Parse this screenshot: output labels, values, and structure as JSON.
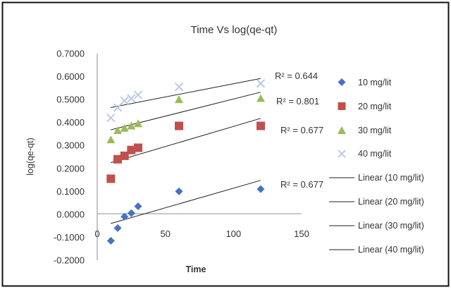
{
  "chart_data": {
    "type": "scatter",
    "title": "Time Vs log(qe-qt)",
    "xlabel": "Time",
    "ylabel": "log(qe-qt)",
    "xlim": [
      0,
      150
    ],
    "ylim": [
      -0.2,
      0.7
    ],
    "x_ticks": [
      "0",
      "50",
      "100",
      "150"
    ],
    "y_ticks": [
      "-0.2000",
      "-0.1000",
      "0.0000",
      "0.1000",
      "0.2000",
      "0.3000",
      "0.4000",
      "0.5000",
      "0.6000",
      "0.7000"
    ],
    "grid": false,
    "legend_position": "right",
    "series": [
      {
        "name": "10 mg/lit",
        "marker": "diamond",
        "color": "#4472C4",
        "points": [
          [
            10,
            -0.115
          ],
          [
            15,
            -0.06
          ],
          [
            20,
            -0.01
          ],
          [
            25,
            0.005
          ],
          [
            30,
            0.035
          ],
          [
            60,
            0.1
          ],
          [
            120,
            0.11
          ]
        ]
      },
      {
        "name": "20 mg/lit",
        "marker": "square",
        "color": "#C0504D",
        "points": [
          [
            10,
            0.155
          ],
          [
            15,
            0.24
          ],
          [
            20,
            0.255
          ],
          [
            25,
            0.28
          ],
          [
            30,
            0.29
          ],
          [
            60,
            0.385
          ],
          [
            120,
            0.385
          ]
        ]
      },
      {
        "name": "30 mg/lit",
        "marker": "triangle",
        "color": "#9BBB59",
        "points": [
          [
            10,
            0.325
          ],
          [
            15,
            0.365
          ],
          [
            20,
            0.375
          ],
          [
            25,
            0.385
          ],
          [
            30,
            0.395
          ],
          [
            60,
            0.5
          ],
          [
            120,
            0.505
          ]
        ]
      },
      {
        "name": "40 mg/lit",
        "marker": "x",
        "color": "#B8C4E8",
        "points": [
          [
            10,
            0.42
          ],
          [
            15,
            0.465
          ],
          [
            20,
            0.495
          ],
          [
            25,
            0.505
          ],
          [
            30,
            0.52
          ],
          [
            60,
            0.555
          ],
          [
            120,
            0.57
          ]
        ]
      }
    ],
    "trendlines": [
      {
        "name": "Linear (10 mg/lit)",
        "color": "#222222",
        "x": [
          10,
          120
        ],
        "y": [
          -0.04,
          0.148
        ]
      },
      {
        "name": "Linear (20 mg/lit)",
        "color": "#222222",
        "x": [
          10,
          120
        ],
        "y": [
          0.225,
          0.418
        ]
      },
      {
        "name": "Linear (30 mg/lit)",
        "color": "#222222",
        "x": [
          10,
          120
        ],
        "y": [
          0.368,
          0.532
        ]
      },
      {
        "name": "Linear (40 mg/lit)",
        "color": "#222222",
        "x": [
          10,
          120
        ],
        "y": [
          0.465,
          0.592
        ]
      }
    ],
    "annotations": [
      {
        "text": "R² = 0.644",
        "for": "40 mg/lit"
      },
      {
        "text": "R² = 0.801",
        "for": "30 mg/lit"
      },
      {
        "text": "R² = 0.677",
        "for": "20 mg/lit"
      },
      {
        "text": "R² = 0.677",
        "for": "10 mg/lit"
      }
    ]
  }
}
